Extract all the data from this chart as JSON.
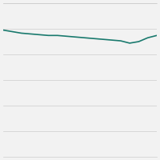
{
  "x": [
    2004,
    2005,
    2006,
    2007,
    2008,
    2009,
    2010,
    2011,
    2012,
    2013,
    2014,
    2015,
    2016,
    2017,
    2018,
    2019,
    2020,
    2021
  ],
  "y": [
    26.5,
    26.3,
    26.1,
    26.0,
    25.9,
    25.8,
    25.8,
    25.7,
    25.6,
    25.5,
    25.4,
    25.3,
    25.2,
    25.1,
    24.8,
    25.0,
    25.5,
    25.8
  ],
  "line_color": "#1a7a6e",
  "line_width": 1.2,
  "background_color": "#f2f2f2",
  "grid_color": "#cccccc",
  "ylim": [
    10,
    30
  ],
  "xlim": [
    2004,
    2021
  ],
  "num_gridlines": 7
}
